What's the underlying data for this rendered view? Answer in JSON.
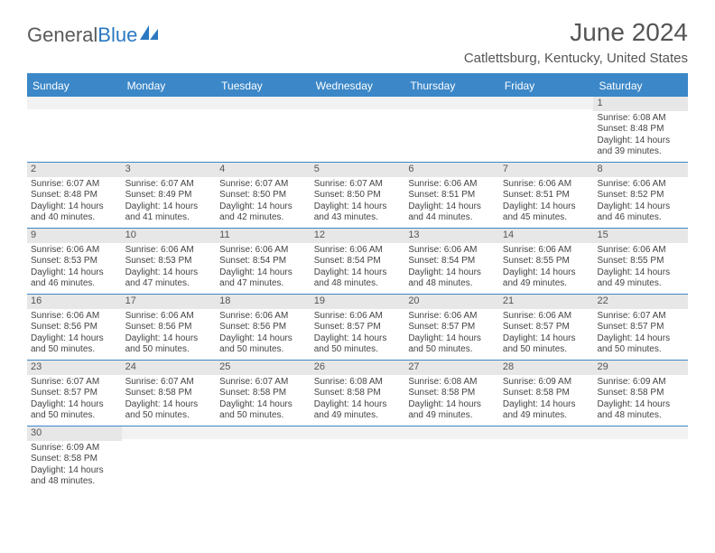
{
  "brand": {
    "part1": "General",
    "part2": "Blue"
  },
  "title": "June 2024",
  "location": "Catlettsburg, Kentucky, United States",
  "colors": {
    "header_bg": "#3b87c8",
    "header_text": "#ffffff",
    "daynum_bg": "#e7e7e7",
    "border": "#3b87c8",
    "text": "#444444",
    "title_text": "#555555"
  },
  "day_headers": [
    "Sunday",
    "Monday",
    "Tuesday",
    "Wednesday",
    "Thursday",
    "Friday",
    "Saturday"
  ],
  "weeks": [
    [
      {
        "n": "",
        "sr": "",
        "ss": "",
        "d1": "",
        "d2": ""
      },
      {
        "n": "",
        "sr": "",
        "ss": "",
        "d1": "",
        "d2": ""
      },
      {
        "n": "",
        "sr": "",
        "ss": "",
        "d1": "",
        "d2": ""
      },
      {
        "n": "",
        "sr": "",
        "ss": "",
        "d1": "",
        "d2": ""
      },
      {
        "n": "",
        "sr": "",
        "ss": "",
        "d1": "",
        "d2": ""
      },
      {
        "n": "",
        "sr": "",
        "ss": "",
        "d1": "",
        "d2": ""
      },
      {
        "n": "1",
        "sr": "Sunrise: 6:08 AM",
        "ss": "Sunset: 8:48 PM",
        "d1": "Daylight: 14 hours",
        "d2": "and 39 minutes."
      }
    ],
    [
      {
        "n": "2",
        "sr": "Sunrise: 6:07 AM",
        "ss": "Sunset: 8:48 PM",
        "d1": "Daylight: 14 hours",
        "d2": "and 40 minutes."
      },
      {
        "n": "3",
        "sr": "Sunrise: 6:07 AM",
        "ss": "Sunset: 8:49 PM",
        "d1": "Daylight: 14 hours",
        "d2": "and 41 minutes."
      },
      {
        "n": "4",
        "sr": "Sunrise: 6:07 AM",
        "ss": "Sunset: 8:50 PM",
        "d1": "Daylight: 14 hours",
        "d2": "and 42 minutes."
      },
      {
        "n": "5",
        "sr": "Sunrise: 6:07 AM",
        "ss": "Sunset: 8:50 PM",
        "d1": "Daylight: 14 hours",
        "d2": "and 43 minutes."
      },
      {
        "n": "6",
        "sr": "Sunrise: 6:06 AM",
        "ss": "Sunset: 8:51 PM",
        "d1": "Daylight: 14 hours",
        "d2": "and 44 minutes."
      },
      {
        "n": "7",
        "sr": "Sunrise: 6:06 AM",
        "ss": "Sunset: 8:51 PM",
        "d1": "Daylight: 14 hours",
        "d2": "and 45 minutes."
      },
      {
        "n": "8",
        "sr": "Sunrise: 6:06 AM",
        "ss": "Sunset: 8:52 PM",
        "d1": "Daylight: 14 hours",
        "d2": "and 46 minutes."
      }
    ],
    [
      {
        "n": "9",
        "sr": "Sunrise: 6:06 AM",
        "ss": "Sunset: 8:53 PM",
        "d1": "Daylight: 14 hours",
        "d2": "and 46 minutes."
      },
      {
        "n": "10",
        "sr": "Sunrise: 6:06 AM",
        "ss": "Sunset: 8:53 PM",
        "d1": "Daylight: 14 hours",
        "d2": "and 47 minutes."
      },
      {
        "n": "11",
        "sr": "Sunrise: 6:06 AM",
        "ss": "Sunset: 8:54 PM",
        "d1": "Daylight: 14 hours",
        "d2": "and 47 minutes."
      },
      {
        "n": "12",
        "sr": "Sunrise: 6:06 AM",
        "ss": "Sunset: 8:54 PM",
        "d1": "Daylight: 14 hours",
        "d2": "and 48 minutes."
      },
      {
        "n": "13",
        "sr": "Sunrise: 6:06 AM",
        "ss": "Sunset: 8:54 PM",
        "d1": "Daylight: 14 hours",
        "d2": "and 48 minutes."
      },
      {
        "n": "14",
        "sr": "Sunrise: 6:06 AM",
        "ss": "Sunset: 8:55 PM",
        "d1": "Daylight: 14 hours",
        "d2": "and 49 minutes."
      },
      {
        "n": "15",
        "sr": "Sunrise: 6:06 AM",
        "ss": "Sunset: 8:55 PM",
        "d1": "Daylight: 14 hours",
        "d2": "and 49 minutes."
      }
    ],
    [
      {
        "n": "16",
        "sr": "Sunrise: 6:06 AM",
        "ss": "Sunset: 8:56 PM",
        "d1": "Daylight: 14 hours",
        "d2": "and 50 minutes."
      },
      {
        "n": "17",
        "sr": "Sunrise: 6:06 AM",
        "ss": "Sunset: 8:56 PM",
        "d1": "Daylight: 14 hours",
        "d2": "and 50 minutes."
      },
      {
        "n": "18",
        "sr": "Sunrise: 6:06 AM",
        "ss": "Sunset: 8:56 PM",
        "d1": "Daylight: 14 hours",
        "d2": "and 50 minutes."
      },
      {
        "n": "19",
        "sr": "Sunrise: 6:06 AM",
        "ss": "Sunset: 8:57 PM",
        "d1": "Daylight: 14 hours",
        "d2": "and 50 minutes."
      },
      {
        "n": "20",
        "sr": "Sunrise: 6:06 AM",
        "ss": "Sunset: 8:57 PM",
        "d1": "Daylight: 14 hours",
        "d2": "and 50 minutes."
      },
      {
        "n": "21",
        "sr": "Sunrise: 6:06 AM",
        "ss": "Sunset: 8:57 PM",
        "d1": "Daylight: 14 hours",
        "d2": "and 50 minutes."
      },
      {
        "n": "22",
        "sr": "Sunrise: 6:07 AM",
        "ss": "Sunset: 8:57 PM",
        "d1": "Daylight: 14 hours",
        "d2": "and 50 minutes."
      }
    ],
    [
      {
        "n": "23",
        "sr": "Sunrise: 6:07 AM",
        "ss": "Sunset: 8:57 PM",
        "d1": "Daylight: 14 hours",
        "d2": "and 50 minutes."
      },
      {
        "n": "24",
        "sr": "Sunrise: 6:07 AM",
        "ss": "Sunset: 8:58 PM",
        "d1": "Daylight: 14 hours",
        "d2": "and 50 minutes."
      },
      {
        "n": "25",
        "sr": "Sunrise: 6:07 AM",
        "ss": "Sunset: 8:58 PM",
        "d1": "Daylight: 14 hours",
        "d2": "and 50 minutes."
      },
      {
        "n": "26",
        "sr": "Sunrise: 6:08 AM",
        "ss": "Sunset: 8:58 PM",
        "d1": "Daylight: 14 hours",
        "d2": "and 49 minutes."
      },
      {
        "n": "27",
        "sr": "Sunrise: 6:08 AM",
        "ss": "Sunset: 8:58 PM",
        "d1": "Daylight: 14 hours",
        "d2": "and 49 minutes."
      },
      {
        "n": "28",
        "sr": "Sunrise: 6:09 AM",
        "ss": "Sunset: 8:58 PM",
        "d1": "Daylight: 14 hours",
        "d2": "and 49 minutes."
      },
      {
        "n": "29",
        "sr": "Sunrise: 6:09 AM",
        "ss": "Sunset: 8:58 PM",
        "d1": "Daylight: 14 hours",
        "d2": "and 48 minutes."
      }
    ],
    [
      {
        "n": "30",
        "sr": "Sunrise: 6:09 AM",
        "ss": "Sunset: 8:58 PM",
        "d1": "Daylight: 14 hours",
        "d2": "and 48 minutes."
      },
      {
        "n": "",
        "sr": "",
        "ss": "",
        "d1": "",
        "d2": ""
      },
      {
        "n": "",
        "sr": "",
        "ss": "",
        "d1": "",
        "d2": ""
      },
      {
        "n": "",
        "sr": "",
        "ss": "",
        "d1": "",
        "d2": ""
      },
      {
        "n": "",
        "sr": "",
        "ss": "",
        "d1": "",
        "d2": ""
      },
      {
        "n": "",
        "sr": "",
        "ss": "",
        "d1": "",
        "d2": ""
      },
      {
        "n": "",
        "sr": "",
        "ss": "",
        "d1": "",
        "d2": ""
      }
    ]
  ]
}
